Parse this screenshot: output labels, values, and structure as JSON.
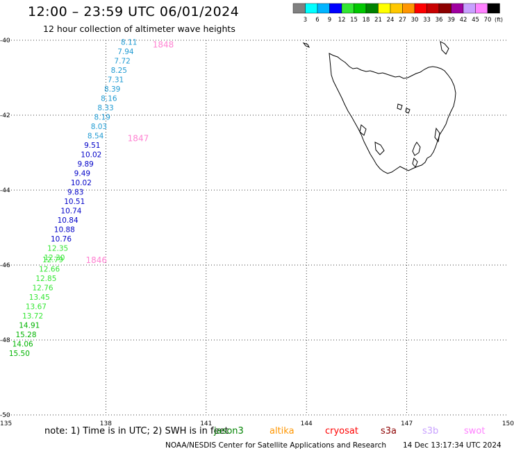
{
  "title": "12:00 – 23:59 UTC 06/01/2024",
  "subtitle": "12 hour collection of altimeter wave heights",
  "legend": {
    "unit": "(ft)",
    "colors": [
      "#808080",
      "#00ffff",
      "#00b4ff",
      "#0000ff",
      "#32e632",
      "#00c800",
      "#008200",
      "#ffff00",
      "#ffc800",
      "#ff9600",
      "#ff0000",
      "#c80000",
      "#8c0000",
      "#a000a0",
      "#c8a0ff",
      "#ff82ff",
      "#000000"
    ],
    "labels": [
      "3",
      "6",
      "9",
      "12",
      "15",
      "18",
      "21",
      "24",
      "27",
      "30",
      "33",
      "36",
      "39",
      "42",
      "45",
      "70"
    ]
  },
  "axes": {
    "lon_ticks": [
      "135",
      "138",
      "141",
      "144",
      "147",
      "150"
    ],
    "lat_ticks": [
      "-40",
      "-42",
      "-44",
      "-46",
      "-48",
      "-50"
    ]
  },
  "chart_data": {
    "type": "scatter",
    "xlim": [
      135,
      150
    ],
    "ylim": [
      -50,
      -40
    ],
    "x_unit": "longitude (deg)",
    "y_unit": "latitude (deg)",
    "grid": true,
    "points": [
      {
        "lon": 135.1,
        "lat": -48.35,
        "swh": "15.50",
        "color": "#00b400"
      },
      {
        "lon": 135.2,
        "lat": -48.1,
        "swh": "14.06",
        "color": "#00b400"
      },
      {
        "lon": 135.3,
        "lat": -47.85,
        "swh": "15.28",
        "color": "#00b400"
      },
      {
        "lon": 135.4,
        "lat": -47.6,
        "swh": "14.91",
        "color": "#00b400"
      },
      {
        "lon": 135.5,
        "lat": -47.35,
        "swh": "13.72",
        "color": "#32e632"
      },
      {
        "lon": 135.6,
        "lat": -47.1,
        "swh": "13.67",
        "color": "#32e632"
      },
      {
        "lon": 135.7,
        "lat": -46.85,
        "swh": "13.45",
        "color": "#32e632"
      },
      {
        "lon": 135.8,
        "lat": -46.6,
        "swh": "12.76",
        "color": "#32e632"
      },
      {
        "lon": 135.9,
        "lat": -46.35,
        "swh": "12.85",
        "color": "#32e632"
      },
      {
        "lon": 136.0,
        "lat": -46.1,
        "swh": "12.66",
        "color": "#32e632"
      },
      {
        "lon": 136.1,
        "lat": -45.85,
        "swh": "12.79",
        "color": "#32e632"
      },
      {
        "lon": 136.15,
        "lat": -45.8,
        "swh": "12.30",
        "color": "#32e632"
      },
      {
        "lon": 136.25,
        "lat": -45.55,
        "swh": "12.35",
        "color": "#32e632"
      },
      {
        "lon": 136.35,
        "lat": -45.3,
        "swh": "10.76",
        "color": "#0000c8"
      },
      {
        "lon": 136.45,
        "lat": -45.05,
        "swh": "10.88",
        "color": "#0000c8"
      },
      {
        "lon": 136.55,
        "lat": -44.8,
        "swh": "10.84",
        "color": "#0000c8"
      },
      {
        "lon": 136.65,
        "lat": -44.55,
        "swh": "10.74",
        "color": "#0000c8"
      },
      {
        "lon": 136.75,
        "lat": -44.3,
        "swh": "10.51",
        "color": "#0000c8"
      },
      {
        "lon": 136.85,
        "lat": -44.05,
        "swh": "9.83",
        "color": "#0000c8"
      },
      {
        "lon": 136.95,
        "lat": -43.8,
        "swh": "10.02",
        "color": "#0000c8"
      },
      {
        "lon": 137.05,
        "lat": -43.55,
        "swh": "9.49",
        "color": "#0000c8"
      },
      {
        "lon": 137.15,
        "lat": -43.3,
        "swh": "9.89",
        "color": "#0000c8"
      },
      {
        "lon": 137.25,
        "lat": -43.05,
        "swh": "10.02",
        "color": "#0000c8"
      },
      {
        "lon": 137.35,
        "lat": -42.8,
        "swh": "9.51",
        "color": "#0000c8"
      },
      {
        "lon": 137.45,
        "lat": -42.55,
        "swh": "8.54",
        "color": "#1e9ad2"
      },
      {
        "lon": 137.55,
        "lat": -42.3,
        "swh": "8.03",
        "color": "#1e9ad2"
      },
      {
        "lon": 137.65,
        "lat": -42.05,
        "swh": "8.19",
        "color": "#1e9ad2"
      },
      {
        "lon": 137.75,
        "lat": -41.8,
        "swh": "8.33",
        "color": "#1e9ad2"
      },
      {
        "lon": 137.85,
        "lat": -41.55,
        "swh": "8.16",
        "color": "#1e9ad2"
      },
      {
        "lon": 137.95,
        "lat": -41.3,
        "swh": "8.39",
        "color": "#1e9ad2"
      },
      {
        "lon": 138.05,
        "lat": -41.05,
        "swh": "7.31",
        "color": "#1e9ad2"
      },
      {
        "lon": 138.15,
        "lat": -40.8,
        "swh": "8.25",
        "color": "#1e9ad2"
      },
      {
        "lon": 138.25,
        "lat": -40.55,
        "swh": "7.72",
        "color": "#1e9ad2"
      },
      {
        "lon": 138.35,
        "lat": -40.3,
        "swh": "7.94",
        "color": "#1e9ad2"
      },
      {
        "lon": 138.45,
        "lat": -40.05,
        "swh": "8.11",
        "color": "#1e9ad2"
      }
    ],
    "time_labels": [
      {
        "text": "1848",
        "lon": 139.4,
        "lat": -40.1
      },
      {
        "text": "1847",
        "lon": 138.65,
        "lat": -42.6
      },
      {
        "text": "1846",
        "lon": 137.4,
        "lat": -45.85
      }
    ]
  },
  "footer": {
    "note": "note: 1) Time is in UTC; 2) SWH is in feet",
    "satellites": [
      {
        "name": "jason3",
        "color": "#008200"
      },
      {
        "name": "altika",
        "color": "#ff9600"
      },
      {
        "name": "cryosat",
        "color": "#ff0000"
      },
      {
        "name": "s3a",
        "color": "#8c0000"
      },
      {
        "name": "s3b",
        "color": "#c8a0ff"
      },
      {
        "name": "swot",
        "color": "#ff82ff"
      }
    ],
    "credit": "NOAA/NESDIS Center for Satellite Applications and Research",
    "timestamp": "14 Dec 13:17:34 UTC 2024"
  },
  "colors": {
    "time_label": "#ff82d2",
    "grid": "#000000",
    "coast": "#000000"
  }
}
